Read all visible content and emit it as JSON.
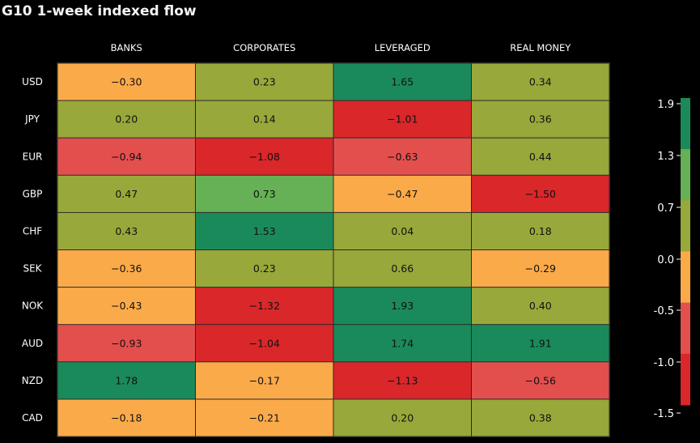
{
  "chart_data": {
    "type": "heatmap",
    "title": "G10 1-week indexed flow",
    "columns": [
      "BANKS",
      "CORPORATES",
      "LEVERAGED",
      "REAL MONEY"
    ],
    "rows": [
      "USD",
      "JPY",
      "EUR",
      "GBP",
      "CHF",
      "SEK",
      "NOK",
      "AUD",
      "NZD",
      "CAD"
    ],
    "values": [
      [
        -0.3,
        0.23,
        1.65,
        0.34
      ],
      [
        0.2,
        0.14,
        -1.01,
        0.36
      ],
      [
        -0.94,
        -1.08,
        -0.63,
        0.44
      ],
      [
        0.47,
        0.73,
        -0.47,
        -1.5
      ],
      [
        0.43,
        1.53,
        0.04,
        0.18
      ],
      [
        -0.36,
        0.23,
        0.66,
        -0.29
      ],
      [
        -0.43,
        -1.32,
        1.93,
        0.4
      ],
      [
        -0.93,
        -1.04,
        1.74,
        1.91
      ],
      [
        1.78,
        -0.17,
        -1.13,
        -0.56
      ],
      [
        -0.18,
        -0.21,
        0.2,
        0.38
      ]
    ],
    "labels": [
      [
        "−0.30",
        "0.23",
        "1.65",
        "0.34"
      ],
      [
        "0.20",
        "0.14",
        "−1.01",
        "0.36"
      ],
      [
        "−0.94",
        "−1.08",
        "−0.63",
        "0.44"
      ],
      [
        "0.47",
        "0.73",
        "−0.47",
        "−1.50"
      ],
      [
        "0.43",
        "1.53",
        "0.04",
        "0.18"
      ],
      [
        "−0.36",
        "0.23",
        "0.66",
        "−0.29"
      ],
      [
        "−0.43",
        "−1.32",
        "1.93",
        "0.40"
      ],
      [
        "−0.93",
        "−1.04",
        "1.74",
        "1.91"
      ],
      [
        "1.78",
        "−0.17",
        "−1.13",
        "−0.56"
      ],
      [
        "−0.18",
        "−0.21",
        "0.20",
        "0.38"
      ]
    ],
    "colorbar": {
      "ticks": [
        "1.9",
        "1.3",
        "0.7",
        "0.0",
        "-0.5",
        "-1.0",
        "-1.5"
      ],
      "bands": [
        {
          "min": 1.3,
          "max": 1.9,
          "color": "#1a8a5a"
        },
        {
          "min": 0.7,
          "max": 1.3,
          "color": "#66b055"
        },
        {
          "min": 0.0,
          "max": 0.7,
          "color": "#98a83a"
        },
        {
          "min": -0.5,
          "max": 0.0,
          "color": "#fbaa4a"
        },
        {
          "min": -1.0,
          "max": -0.5,
          "color": "#e34f4d"
        },
        {
          "min": -1.5,
          "max": -1.0,
          "color": "#d9272a"
        }
      ]
    }
  }
}
